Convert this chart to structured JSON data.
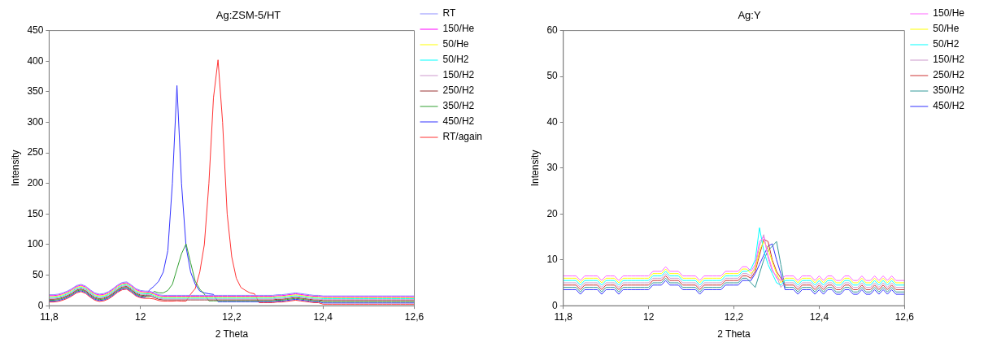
{
  "chart_data": [
    {
      "type": "line",
      "title": "Ag:ZSM-5/HT",
      "xlabel": "2 Theta",
      "ylabel": "Intensity",
      "legend": "top right",
      "grid": false,
      "xlim": [
        11.8,
        12.6
      ],
      "xticks": [
        {
          "value": 11.8,
          "label": "11,8"
        },
        12,
        {
          "value": 12.2,
          "label": "12,2"
        },
        {
          "value": 12.4,
          "label": "12,4"
        },
        {
          "value": 12.6,
          "label": "12,6"
        }
      ],
      "ylim": [
        0,
        450
      ],
      "yticks": [
        0,
        50,
        100,
        150,
        200,
        250,
        300,
        350,
        400,
        450
      ],
      "x": [
        11.8,
        11.81,
        11.82,
        11.83,
        11.84,
        11.85,
        11.86,
        11.87,
        11.88,
        11.89,
        11.9,
        11.91,
        11.92,
        11.93,
        11.94,
        11.95,
        11.96,
        11.97,
        11.98,
        11.99,
        12,
        12.01,
        12.02,
        12.03,
        12.04,
        12.05,
        12.06,
        12.07,
        12.08,
        12.09,
        12.1,
        12.11,
        12.12,
        12.13,
        12.14,
        12.15,
        12.16,
        12.17,
        12.18,
        12.19,
        12.2,
        12.21,
        12.22,
        12.23,
        12.24,
        12.25,
        12.26,
        12.27,
        12.28,
        12.29,
        12.3,
        12.31,
        12.32,
        12.33,
        12.34,
        12.35,
        12.36,
        12.37,
        12.38,
        12.39,
        12.4,
        12.41,
        12.42,
        12.43,
        12.44,
        12.45,
        12.46,
        12.47,
        12.48,
        12.49,
        12.5,
        12.51,
        12.52,
        12.53,
        12.54,
        12.55,
        12.56,
        12.57,
        12.58,
        12.59,
        12.6
      ],
      "series": [
        {
          "name": "RT",
          "color": "#8c8cff",
          "values": [
            18,
            18,
            19,
            21,
            24,
            28,
            33,
            35,
            32,
            26,
            21,
            19,
            20,
            23,
            28,
            34,
            38,
            39,
            34,
            28,
            25,
            24,
            24,
            21,
            18,
            17,
            17,
            17,
            17,
            17,
            17,
            17,
            17,
            17,
            17,
            17,
            17,
            17,
            17,
            17,
            17,
            17,
            17,
            17,
            17,
            17,
            17,
            17,
            17,
            17,
            18,
            18,
            19,
            20,
            21,
            20,
            19,
            18,
            17,
            17,
            16,
            16,
            16,
            16,
            16,
            16,
            16,
            16,
            16,
            16,
            16,
            16,
            16,
            16,
            16,
            16,
            16,
            16,
            16,
            16,
            16
          ]
        },
        {
          "name": "150/He",
          "color": "#ff00ff",
          "values": [
            16.5,
            16.5,
            17.5,
            19.5,
            22.5,
            26.5,
            31.5,
            33.5,
            30.5,
            24.5,
            19.5,
            17.5,
            18.5,
            21.5,
            26.5,
            32.5,
            36.5,
            37.5,
            32.5,
            26.5,
            23.5,
            22.5,
            22.5,
            19.5,
            16.5,
            15.5,
            15.5,
            15.5,
            15.5,
            15.5,
            15.5,
            15.5,
            15.5,
            15.5,
            15.5,
            15.5,
            15.5,
            15.5,
            15.5,
            15.5,
            15.5,
            15.5,
            15.5,
            15.5,
            15.5,
            15.5,
            15.5,
            15.5,
            15.5,
            15.5,
            16.5,
            16.5,
            17.5,
            18.5,
            19.5,
            18.5,
            17.5,
            16.5,
            15.5,
            15.5,
            14.5,
            14.5,
            14.5,
            14.5,
            14.5,
            14.5,
            14.5,
            14.5,
            14.5,
            14.5,
            14.5,
            14.5,
            14.5,
            14.5,
            14.5,
            14.5,
            14.5,
            14.5,
            14.5,
            14.5,
            14.5
          ]
        },
        {
          "name": "50/He",
          "color": "#ffff00",
          "values": [
            15,
            15,
            16,
            18,
            21,
            25,
            30,
            32,
            29,
            23,
            18,
            16,
            17,
            20,
            25,
            31,
            35,
            36,
            31,
            25,
            22,
            21,
            21,
            18,
            15,
            14,
            14,
            14,
            14,
            14,
            14,
            14,
            14,
            14,
            14,
            14,
            14,
            14,
            14,
            14,
            14,
            14,
            14,
            14,
            14,
            14,
            14,
            14,
            14,
            14,
            15,
            15,
            16,
            17,
            18,
            17,
            16,
            15,
            14,
            14,
            13,
            13,
            13,
            13,
            13,
            13,
            13,
            13,
            13,
            13,
            13,
            13,
            13,
            13,
            13,
            13,
            13,
            13,
            13,
            13,
            13
          ]
        },
        {
          "name": "50/H2",
          "color": "#00ffff",
          "values": [
            13.5,
            13.5,
            14.5,
            16.5,
            19.5,
            23.5,
            28.5,
            30.5,
            27.5,
            21.5,
            16.5,
            14.5,
            15.5,
            18.5,
            23.5,
            29.5,
            33.5,
            34.5,
            29.5,
            23.5,
            20.5,
            19.5,
            19.5,
            16.5,
            13.5,
            12.5,
            12.5,
            12.5,
            12.5,
            12.5,
            12.5,
            12.5,
            12.5,
            12.5,
            12.5,
            12.5,
            12.5,
            12.5,
            12.5,
            12.5,
            12.5,
            12.5,
            12.5,
            12.5,
            12.5,
            12.5,
            12.5,
            12.5,
            12.5,
            12.5,
            13.5,
            13.5,
            14.5,
            15.5,
            16.5,
            15.5,
            14.5,
            13.5,
            12.5,
            12.5,
            11.5,
            11.5,
            11.5,
            11.5,
            11.5,
            11.5,
            11.5,
            11.5,
            11.5,
            11.5,
            11.5,
            11.5,
            11.5,
            11.5,
            11.5,
            11.5,
            11.5,
            11.5,
            11.5,
            11.5,
            11.5
          ]
        },
        {
          "name": "150/H2",
          "color": "#cc99cc",
          "values": [
            12,
            12,
            13,
            15,
            18,
            22,
            27,
            29,
            26,
            20,
            15,
            13,
            14,
            17,
            22,
            28,
            32,
            33,
            28,
            22,
            19,
            18,
            18,
            15,
            12,
            11,
            11,
            11,
            11,
            11,
            11,
            11,
            11,
            11,
            11,
            11,
            11,
            11,
            11,
            11,
            11,
            11,
            11,
            11,
            11,
            11,
            11,
            11,
            11,
            11,
            12,
            12,
            13,
            14,
            15,
            14,
            13,
            12,
            11,
            11,
            10,
            10,
            10,
            10,
            10,
            10,
            10,
            10,
            10,
            10,
            10,
            10,
            10,
            10,
            10,
            10,
            10,
            10,
            10,
            10,
            10
          ]
        },
        {
          "name": "250/H2",
          "color": "#993333",
          "values": [
            10.5,
            10.5,
            11.5,
            13.5,
            16.5,
            20.5,
            25.5,
            27.5,
            24.5,
            18.5,
            13.5,
            11.5,
            12.5,
            15.5,
            20.5,
            26.5,
            30.5,
            31.5,
            26.5,
            20.5,
            17.5,
            16.5,
            16.5,
            13.5,
            10.5,
            9.5,
            9.5,
            9.5,
            9.5,
            9.5,
            9.5,
            9.5,
            9.5,
            9.5,
            9.5,
            9.5,
            9.5,
            9.5,
            9.5,
            9.5,
            9.5,
            9.5,
            9.5,
            9.5,
            9.5,
            9.5,
            9.5,
            9.5,
            9.5,
            9.5,
            10.5,
            10.5,
            11.5,
            12.5,
            13.5,
            12.5,
            11.5,
            10.5,
            9.5,
            9.5,
            8.5,
            8.5,
            8.5,
            8.5,
            8.5,
            8.5,
            8.5,
            8.5,
            8.5,
            8.5,
            8.5,
            8.5,
            8.5,
            8.5,
            8.5,
            8.5,
            8.5,
            8.5,
            8.5,
            8.5,
            8.5
          ]
        },
        {
          "name": "350/H2",
          "color": "#33a033",
          "values": [
            9,
            9,
            10,
            12,
            15,
            19,
            24,
            26,
            23,
            17,
            12,
            10,
            11,
            14,
            19,
            25,
            29,
            30,
            25,
            19,
            16,
            15,
            15,
            23.5,
            21,
            21,
            25,
            35,
            60,
            85,
            101,
            70,
            40,
            27,
            19,
            8,
            8,
            8,
            8,
            8,
            8,
            8,
            8,
            8,
            8,
            8,
            8,
            8,
            8,
            8,
            9,
            9,
            10,
            11,
            12,
            11,
            10,
            9,
            8,
            8,
            6.5,
            6.5,
            6.5,
            6.5,
            6.5,
            6.5,
            6.5,
            6.5,
            6.5,
            6.5,
            6.5,
            6.5,
            6.5,
            6.5,
            6.5,
            6.5,
            6.5,
            6.5,
            6.5,
            6.5,
            6.5
          ]
        },
        {
          "name": "450/H2",
          "color": "#3333ff",
          "values": [
            7.5,
            7.5,
            8.5,
            10.5,
            13.5,
            17.5,
            22.5,
            24.5,
            21.5,
            15.5,
            10.5,
            8.5,
            9.5,
            12.5,
            17.5,
            23.5,
            27.5,
            28.5,
            23.5,
            17.5,
            14.5,
            13.5,
            26,
            32,
            40,
            55,
            90,
            200,
            360,
            200,
            96,
            55,
            35,
            24,
            21,
            19.5,
            18.5,
            6.5,
            6.5,
            6.5,
            6.5,
            6.5,
            6.5,
            6.5,
            6.5,
            6.5,
            6.5,
            6.5,
            6.5,
            6.5,
            7.5,
            7.5,
            8.5,
            9.5,
            10.5,
            9.5,
            8.5,
            7.5,
            6.5,
            6.5,
            4.5,
            4.5,
            4.5,
            4.5,
            4.5,
            4.5,
            4.5,
            4.5,
            4.5,
            4.5,
            4.5,
            4.5,
            4.5,
            4.5,
            4.5,
            4.5,
            4.5,
            4.5,
            4.5,
            4.5,
            4.5
          ]
        },
        {
          "name": "RT/again",
          "color": "#ff3333",
          "values": [
            6,
            6,
            7,
            9,
            12,
            16,
            21,
            23,
            20,
            14,
            9,
            7,
            8,
            11,
            16,
            22,
            26,
            27,
            22,
            16,
            13,
            12,
            12,
            11,
            8.5,
            7.5,
            7.5,
            7.5,
            8,
            7.5,
            7.5,
            19,
            28,
            55,
            100,
            200,
            340,
            402,
            300,
            150,
            80,
            45,
            30,
            25,
            21,
            19.5,
            5,
            5,
            5,
            5,
            6,
            6,
            7,
            8,
            9,
            8,
            7,
            6,
            5,
            5,
            2.5,
            2.5,
            2.5,
            2.5,
            2.5,
            2.5,
            2.5,
            2.5,
            2.5,
            2.5,
            2.5,
            2.5,
            2.5,
            2.5,
            2.5,
            2.5,
            2.5,
            2.5,
            2.5,
            2.5,
            2.5
          ]
        }
      ]
    },
    {
      "type": "line",
      "title": "Ag:Y",
      "xlabel": "2 Theta",
      "ylabel": "Intensity",
      "legend": "top right",
      "grid": false,
      "xlim": [
        11.8,
        12.6
      ],
      "xticks": [
        {
          "value": 11.8,
          "label": "11,8"
        },
        12,
        {
          "value": 12.2,
          "label": "12,2"
        },
        {
          "value": 12.4,
          "label": "12,4"
        },
        {
          "value": 12.6,
          "label": "12,6"
        }
      ],
      "ylim": [
        0,
        60
      ],
      "yticks": [
        0,
        10,
        20,
        30,
        40,
        50,
        60
      ],
      "x": [
        11.8,
        11.81,
        11.82,
        11.83,
        11.84,
        11.85,
        11.86,
        11.87,
        11.88,
        11.89,
        11.9,
        11.91,
        11.92,
        11.93,
        11.94,
        11.95,
        11.96,
        11.97,
        11.98,
        11.99,
        12,
        12.01,
        12.02,
        12.03,
        12.04,
        12.05,
        12.06,
        12.07,
        12.08,
        12.09,
        12.1,
        12.11,
        12.12,
        12.13,
        12.14,
        12.15,
        12.16,
        12.17,
        12.18,
        12.19,
        12.2,
        12.21,
        12.22,
        12.23,
        12.24,
        12.25,
        12.26,
        12.27,
        12.28,
        12.29,
        12.3,
        12.31,
        12.32,
        12.33,
        12.34,
        12.35,
        12.36,
        12.37,
        12.38,
        12.39,
        12.4,
        12.41,
        12.42,
        12.43,
        12.44,
        12.45,
        12.46,
        12.47,
        12.48,
        12.49,
        12.5,
        12.51,
        12.52,
        12.53,
        12.54,
        12.55,
        12.56,
        12.57,
        12.58,
        12.59,
        12.6
      ],
      "series": [
        {
          "name": "150/He",
          "color": "#ff66ff",
          "values": [
            6.5,
            6.5,
            6.5,
            6.5,
            5.5,
            6.5,
            6.5,
            6.5,
            6.5,
            5.5,
            6.5,
            6.5,
            6.5,
            5.5,
            6.5,
            6.5,
            6.5,
            6.5,
            6.5,
            6.5,
            6.5,
            7.5,
            7.5,
            7.5,
            8.5,
            7.5,
            7.5,
            7.5,
            6.5,
            6.5,
            6.5,
            6.5,
            5.5,
            6.5,
            6.5,
            6.5,
            6.5,
            6.5,
            7.5,
            7.5,
            7.5,
            7.5,
            8.5,
            8.5,
            7.5,
            9,
            14,
            15,
            11,
            8,
            6,
            5.5,
            6.5,
            6.5,
            6.5,
            5.5,
            6.5,
            6.5,
            6.5,
            5.5,
            6.5,
            5.5,
            6.5,
            6.5,
            5.5,
            5.5,
            6.5,
            6.5,
            5.5,
            5.5,
            6.5,
            5.5,
            5.5,
            6.5,
            5.5,
            6.5,
            5.5,
            6.5,
            5.5,
            5.5,
            5.5
          ]
        },
        {
          "name": "50/He",
          "color": "#ffff00",
          "values": [
            6,
            6,
            6,
            6,
            5,
            6,
            6,
            6,
            6,
            5,
            6,
            6,
            6,
            5,
            6,
            6,
            6,
            6,
            6,
            6,
            6,
            7,
            7,
            7,
            8,
            7,
            7,
            7,
            6,
            6,
            6,
            6,
            5,
            6,
            6,
            6,
            6,
            6,
            7,
            7,
            7,
            7,
            8,
            8,
            7,
            8,
            12,
            14,
            12.5,
            9.5,
            7,
            5,
            6,
            6,
            6,
            5,
            6,
            6,
            6,
            5,
            6,
            5,
            6,
            6,
            5,
            5,
            6,
            6,
            5,
            5,
            6,
            5,
            5,
            6,
            5,
            6,
            5,
            6,
            5,
            5,
            5
          ]
        },
        {
          "name": "50/H2",
          "color": "#00ffff",
          "values": [
            5.5,
            5.5,
            5.5,
            5.5,
            4.5,
            5.5,
            5.5,
            5.5,
            5.5,
            4.5,
            5.5,
            5.5,
            5.5,
            4.5,
            5.5,
            5.5,
            5.5,
            5.5,
            5.5,
            5.5,
            5.5,
            6.5,
            6.5,
            6.5,
            7.5,
            6.5,
            6.5,
            6.5,
            5.5,
            5.5,
            5.5,
            5.5,
            4.5,
            5.5,
            5.5,
            5.5,
            5.5,
            5.5,
            6.5,
            6.5,
            6.5,
            6.5,
            7.5,
            7.5,
            8,
            10,
            17,
            12,
            9,
            7,
            5,
            4.5,
            5.5,
            5.5,
            5.5,
            4.5,
            5.5,
            5.5,
            5.5,
            4.5,
            5.5,
            4.5,
            5.5,
            5.5,
            4.5,
            4.5,
            5.5,
            5.5,
            4.5,
            4.5,
            5.5,
            4.5,
            4.5,
            5.5,
            4.5,
            5.5,
            4.5,
            5.5,
            4.5,
            4.5,
            4.5
          ]
        },
        {
          "name": "150/H2",
          "color": "#cc99cc",
          "values": [
            5,
            5,
            5,
            5,
            4,
            5,
            5,
            5,
            5,
            4,
            5,
            5,
            5,
            4,
            5,
            5,
            5,
            5,
            5,
            5,
            5,
            6,
            6,
            6,
            7,
            6,
            6,
            6,
            5,
            5,
            5,
            5,
            4,
            5,
            5,
            5,
            5,
            5,
            6,
            6,
            6,
            6,
            7,
            7,
            6.5,
            8.5,
            13,
            15.5,
            10.5,
            7.5,
            6.5,
            4,
            5,
            5,
            5,
            4,
            5,
            5,
            5,
            4,
            5,
            4,
            5,
            5,
            4,
            4,
            5,
            5,
            4,
            4,
            5,
            4,
            4,
            5,
            4,
            5,
            4,
            5,
            4,
            4,
            4
          ]
        },
        {
          "name": "250/H2",
          "color": "#cc3333",
          "values": [
            4.5,
            4.5,
            4.5,
            4.5,
            3.5,
            4.5,
            4.5,
            4.5,
            4.5,
            3.5,
            4.5,
            4.5,
            4.5,
            3.5,
            4.5,
            4.5,
            4.5,
            4.5,
            4.5,
            4.5,
            4.5,
            5.5,
            5.5,
            5.5,
            6.5,
            5.5,
            5.5,
            5.5,
            4.5,
            4.5,
            4.5,
            4.5,
            3.5,
            4.5,
            4.5,
            4.5,
            4.5,
            4.5,
            5.5,
            5.5,
            5.5,
            5.5,
            6.5,
            6.5,
            6,
            7.5,
            11,
            14.5,
            14,
            10,
            7.5,
            6,
            4.5,
            4.5,
            4.5,
            3.5,
            4.5,
            4.5,
            4.5,
            3.5,
            4.5,
            3.5,
            4.5,
            4.5,
            3.5,
            3.5,
            4.5,
            4.5,
            3.5,
            3.5,
            4.5,
            3.5,
            3.5,
            4.5,
            3.5,
            4.5,
            3.5,
            4.5,
            3.5,
            3.5,
            3.5
          ]
        },
        {
          "name": "350/H2",
          "color": "#339999",
          "values": [
            4,
            4,
            4,
            4,
            3,
            4,
            4,
            4,
            4,
            3,
            4,
            4,
            4,
            3,
            4,
            4,
            4,
            4,
            4,
            4,
            4,
            5,
            5,
            5,
            6,
            5,
            5,
            5,
            4,
            4,
            4,
            4,
            3,
            4,
            4,
            4,
            4,
            4,
            5,
            5,
            5,
            5,
            6,
            6,
            5,
            4,
            7,
            10,
            12,
            13,
            14,
            9,
            4,
            4,
            4,
            3,
            4,
            4,
            4,
            3,
            4,
            3,
            4,
            4,
            3,
            3,
            4,
            4,
            3,
            3,
            4,
            3,
            3,
            4,
            3,
            4,
            3,
            4,
            3,
            3,
            3
          ]
        },
        {
          "name": "450/H2",
          "color": "#3333ff",
          "values": [
            3.5,
            3.5,
            3.5,
            3.5,
            2.5,
            3.5,
            3.5,
            3.5,
            3.5,
            2.5,
            3.5,
            3.5,
            3.5,
            2.5,
            3.5,
            3.5,
            3.5,
            3.5,
            3.5,
            3.5,
            3.5,
            4.5,
            4.5,
            4.5,
            5.5,
            4.5,
            4.5,
            4.5,
            3.5,
            3.5,
            3.5,
            3.5,
            2.5,
            3.5,
            3.5,
            3.5,
            3.5,
            3.5,
            4.5,
            4.5,
            4.5,
            4.5,
            5.5,
            5.5,
            5.5,
            7,
            9,
            11,
            13,
            13.5,
            10,
            7,
            3.5,
            3.5,
            3.5,
            2.5,
            3.5,
            3.5,
            3.5,
            2.5,
            3.5,
            2.5,
            3.5,
            3.5,
            2.5,
            2.5,
            3.5,
            3.5,
            2.5,
            2.5,
            3.5,
            2.5,
            2.5,
            3.5,
            2.5,
            3.5,
            2.5,
            3.5,
            2.5,
            2.5,
            2.5
          ]
        }
      ]
    }
  ]
}
